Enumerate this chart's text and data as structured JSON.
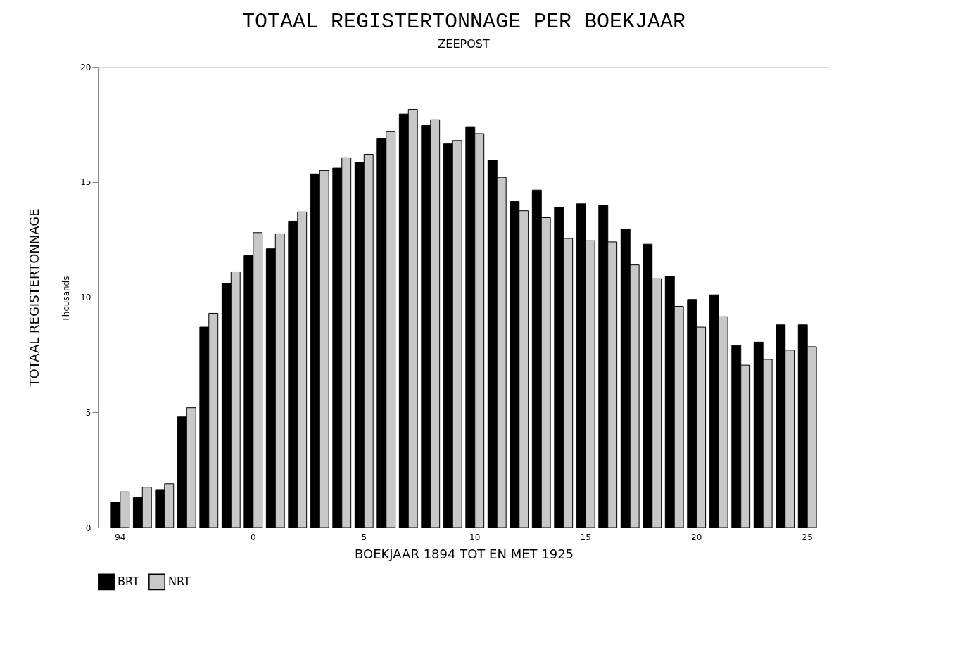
{
  "chart_data": {
    "type": "bar",
    "title": "TOTAAL REGISTERTONNAGE PER BOEKJAAR",
    "subtitle": "ZEEPOST",
    "xlabel": "BOEKJAAR 1894 TOT EN MET 1925",
    "ylabel": "TOTAAL REGISTERTONNAGE",
    "annotations": [
      "Thousands"
    ],
    "categories": [
      "94",
      null,
      null,
      null,
      null,
      null,
      "0",
      null,
      null,
      null,
      null,
      "5",
      null,
      null,
      null,
      null,
      "10",
      null,
      null,
      null,
      null,
      "15",
      null,
      null,
      null,
      null,
      "20",
      null,
      null,
      null,
      null,
      "25"
    ],
    "series": [
      {
        "name": "BRT",
        "color": "#000000",
        "values": [
          1.1,
          1.3,
          1.65,
          4.8,
          8.7,
          10.6,
          11.8,
          12.1,
          13.3,
          15.35,
          15.6,
          15.85,
          16.9,
          17.95,
          17.45,
          16.65,
          17.4,
          15.95,
          14.15,
          14.65,
          13.9,
          14.05,
          14.0,
          12.95,
          12.3,
          10.9,
          9.9,
          10.1,
          7.9,
          8.05,
          8.8,
          8.8
        ]
      },
      {
        "name": "NRT",
        "color": "#c8c8c8",
        "values": [
          1.55,
          1.75,
          1.9,
          5.2,
          9.3,
          11.1,
          12.8,
          12.75,
          13.7,
          15.5,
          16.05,
          16.2,
          17.2,
          18.15,
          17.7,
          16.8,
          17.1,
          15.2,
          13.75,
          13.45,
          12.55,
          12.45,
          12.4,
          11.4,
          10.8,
          9.6,
          8.7,
          9.15,
          7.05,
          7.3,
          7.7,
          7.85
        ]
      }
    ],
    "ylim": [
      0,
      20
    ],
    "yticks": [
      0,
      5,
      10,
      15,
      20
    ],
    "grid": false,
    "legend": "bottom"
  }
}
